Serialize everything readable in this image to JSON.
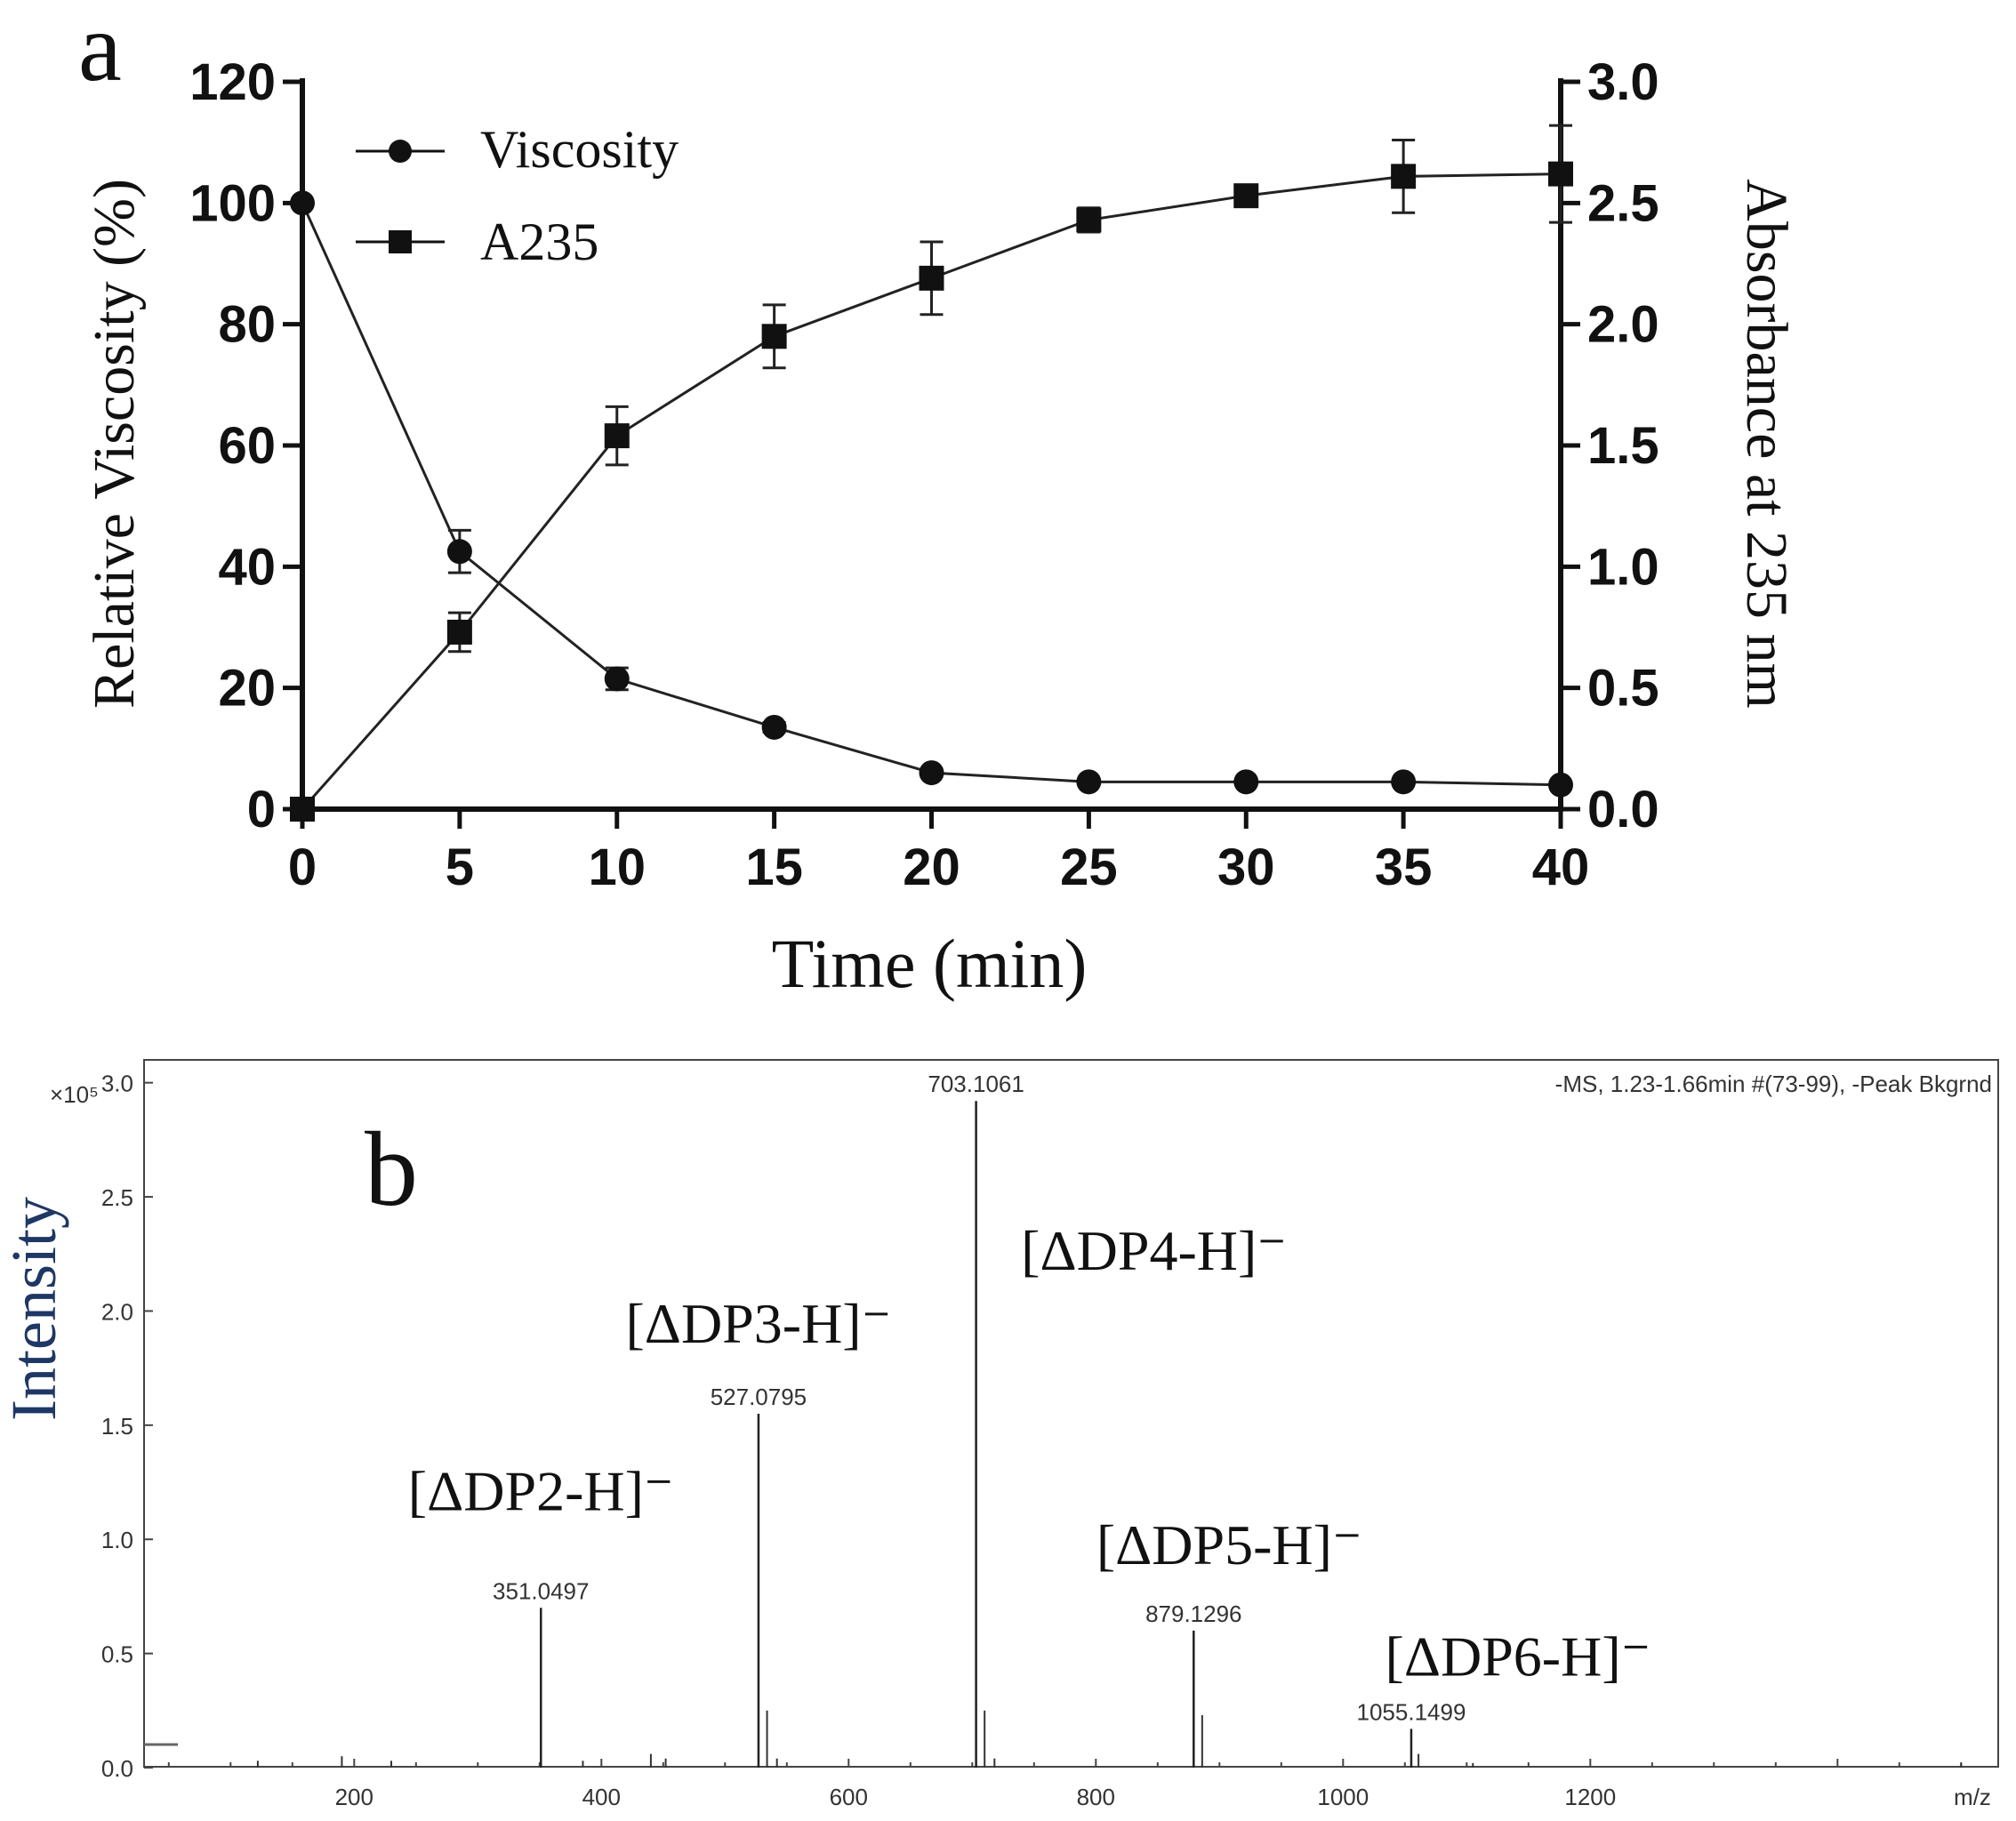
{
  "chart_data": [
    {
      "type": "line",
      "panel_label": "a",
      "xlabel": "Time (min)",
      "ylabel": "Relative Viscosity (%)",
      "y2label": "Absorbance at 235 nm",
      "x": [
        0,
        5,
        10,
        15,
        20,
        25,
        30,
        35,
        40
      ],
      "xlim": [
        0,
        40
      ],
      "xticks": [
        "0",
        "5",
        "10",
        "15",
        "20",
        "25",
        "30",
        "35",
        "40"
      ],
      "ylim": [
        0,
        120
      ],
      "yticks": [
        "0",
        "20",
        "40",
        "60",
        "80",
        "100",
        "120"
      ],
      "y2lim": [
        0,
        3.0
      ],
      "y2ticks": [
        "0.0",
        "0.5",
        "1.0",
        "1.5",
        "2.0",
        "2.5",
        "3.0"
      ],
      "legend_position": "top-left",
      "series": [
        {
          "name": "Viscosity",
          "axis": "left",
          "marker": "circle",
          "values": [
            100,
            42.5,
            21.5,
            13.5,
            6,
            4.5,
            4.5,
            4.5,
            4
          ],
          "errors": [
            0,
            3.5,
            1.8,
            0.8,
            0.6,
            0.4,
            0.4,
            0.4,
            0.4
          ]
        },
        {
          "name": "A235",
          "axis": "right",
          "marker": "square",
          "values": [
            0,
            0.73,
            1.54,
            1.95,
            2.19,
            2.43,
            2.53,
            2.61,
            2.62
          ],
          "errors": [
            0,
            0.08,
            0.12,
            0.13,
            0.15,
            0.05,
            0.04,
            0.15,
            0.2
          ]
        }
      ]
    },
    {
      "type": "line",
      "subtype": "mass-spectrum",
      "panel_label": "b",
      "ylabel": "Intensity",
      "xlabel": "m/z",
      "scale_label": "×10⁵",
      "header": "-MS, 1.23-1.66min #(73-99), -Peak Bkgrnd",
      "xlim": [
        30,
        1530
      ],
      "xticks": [
        "200",
        "400",
        "600",
        "800",
        "1000",
        "1200"
      ],
      "ylim": [
        0,
        3.1
      ],
      "yticks": [
        "0.0",
        "0.5",
        "1.0",
        "1.5",
        "2.0",
        "2.5",
        "3.0"
      ],
      "peaks": [
        {
          "mz": 351.0497,
          "mz_label": "351.0497",
          "intensity": 0.7,
          "ion": "[ΔDP2-H]⁻"
        },
        {
          "mz": 527.0795,
          "mz_label": "527.0795",
          "intensity": 1.55,
          "ion": "[ΔDP3-H]⁻"
        },
        {
          "mz": 703.1061,
          "mz_label": "703.1061",
          "intensity": 2.92,
          "ion": "[ΔDP4-H]⁻"
        },
        {
          "mz": 879.1296,
          "mz_label": "879.1296",
          "intensity": 0.6,
          "ion": "[ΔDP5-H]⁻"
        },
        {
          "mz": 1055.1499,
          "mz_label": "1055.1499",
          "intensity": 0.17,
          "ion": "[ΔDP6-H]⁻"
        }
      ]
    }
  ]
}
